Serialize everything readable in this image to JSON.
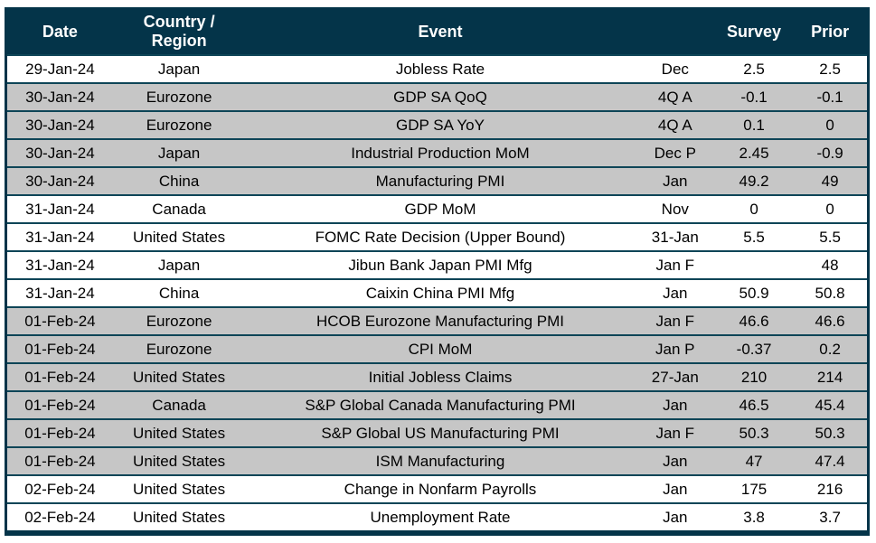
{
  "title": "Economic calendar table",
  "colors": {
    "header_bg": "#043449",
    "header_text": "#ffffff",
    "row_shaded": "#c6c6c6",
    "row_plain": "#ffffff",
    "border_outer": "#043449",
    "border_inner": "#0e4557",
    "text": "#000000"
  },
  "chart_data": {
    "type": "table",
    "title": "",
    "columns": [
      "Date",
      "Country /\nRegion",
      "Event",
      "",
      "Survey",
      "Prior"
    ],
    "column_keys": [
      "date",
      "region",
      "event",
      "period",
      "survey",
      "prior"
    ],
    "shading_rule": "rows shaded gray for alternating date groups (30-Jan-24 and 01-Feb-24 groups shaded)",
    "rows": [
      [
        "29-Jan-24",
        "Japan",
        "Jobless Rate",
        "Dec",
        "2.5",
        "2.5"
      ],
      [
        "30-Jan-24",
        "Eurozone",
        "GDP SA QoQ",
        "4Q A",
        "-0.1",
        "-0.1"
      ],
      [
        "30-Jan-24",
        "Eurozone",
        "GDP SA YoY",
        "4Q A",
        "0.1",
        "0"
      ],
      [
        "30-Jan-24",
        "Japan",
        "Industrial Production MoM",
        "Dec P",
        "2.45",
        "-0.9"
      ],
      [
        "30-Jan-24",
        "China",
        "Manufacturing PMI",
        "Jan",
        "49.2",
        "49"
      ],
      [
        "31-Jan-24",
        "Canada",
        "GDP MoM",
        "Nov",
        "0",
        "0"
      ],
      [
        "31-Jan-24",
        "United States",
        "FOMC Rate Decision (Upper Bound)",
        "31-Jan",
        "5.5",
        "5.5"
      ],
      [
        "31-Jan-24",
        "Japan",
        "Jibun Bank Japan PMI Mfg",
        "Jan F",
        "",
        "48"
      ],
      [
        "31-Jan-24",
        "China",
        "Caixin China PMI Mfg",
        "Jan",
        "50.9",
        "50.8"
      ],
      [
        "01-Feb-24",
        "Eurozone",
        "HCOB Eurozone Manufacturing PMI",
        "Jan F",
        "46.6",
        "46.6"
      ],
      [
        "01-Feb-24",
        "Eurozone",
        "CPI MoM",
        "Jan P",
        "-0.37",
        "0.2"
      ],
      [
        "01-Feb-24",
        "United States",
        "Initial Jobless Claims",
        "27-Jan",
        "210",
        "214"
      ],
      [
        "01-Feb-24",
        "Canada",
        "S&P Global Canada Manufacturing PMI",
        "Jan",
        "46.5",
        "45.4"
      ],
      [
        "01-Feb-24",
        "United States",
        "S&P Global US Manufacturing PMI",
        "Jan F",
        "50.3",
        "50.3"
      ],
      [
        "01-Feb-24",
        "United States",
        "ISM Manufacturing",
        "Jan",
        "47",
        "47.4"
      ],
      [
        "02-Feb-24",
        "United States",
        "Change in Nonfarm Payrolls",
        "Jan",
        "175",
        "216"
      ],
      [
        "02-Feb-24",
        "United States",
        "Unemployment Rate",
        "Jan",
        "3.8",
        "3.7"
      ]
    ]
  }
}
